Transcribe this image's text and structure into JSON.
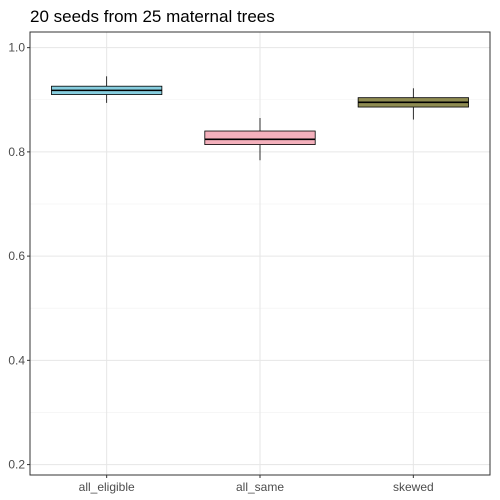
{
  "chart_data": {
    "type": "box",
    "title": "20 seeds from 25 maternal trees",
    "xlabel": "",
    "ylabel": "",
    "categories": [
      "all_eligible",
      "all_same",
      "skewed"
    ],
    "ylim": [
      0.18,
      1.03
    ],
    "y_ticks": [
      0.2,
      0.4,
      0.6,
      0.8,
      1.0
    ],
    "y_tick_labels": [
      "0.2",
      "0.4",
      "0.6",
      "0.8",
      "1.0"
    ],
    "grid": true,
    "legend": "none",
    "boxes": [
      {
        "category": "all_eligible",
        "min": 0.894,
        "q1": 0.91,
        "median": 0.918,
        "q3": 0.926,
        "max": 0.945,
        "fill": "#87CEDF"
      },
      {
        "category": "all_same",
        "min": 0.784,
        "q1": 0.814,
        "median": 0.824,
        "q3": 0.84,
        "max": 0.865,
        "fill": "#F4B0BC"
      },
      {
        "category": "skewed",
        "min": 0.862,
        "q1": 0.886,
        "median": 0.895,
        "q3": 0.904,
        "max": 0.922,
        "fill": "#8F8C52"
      }
    ]
  }
}
